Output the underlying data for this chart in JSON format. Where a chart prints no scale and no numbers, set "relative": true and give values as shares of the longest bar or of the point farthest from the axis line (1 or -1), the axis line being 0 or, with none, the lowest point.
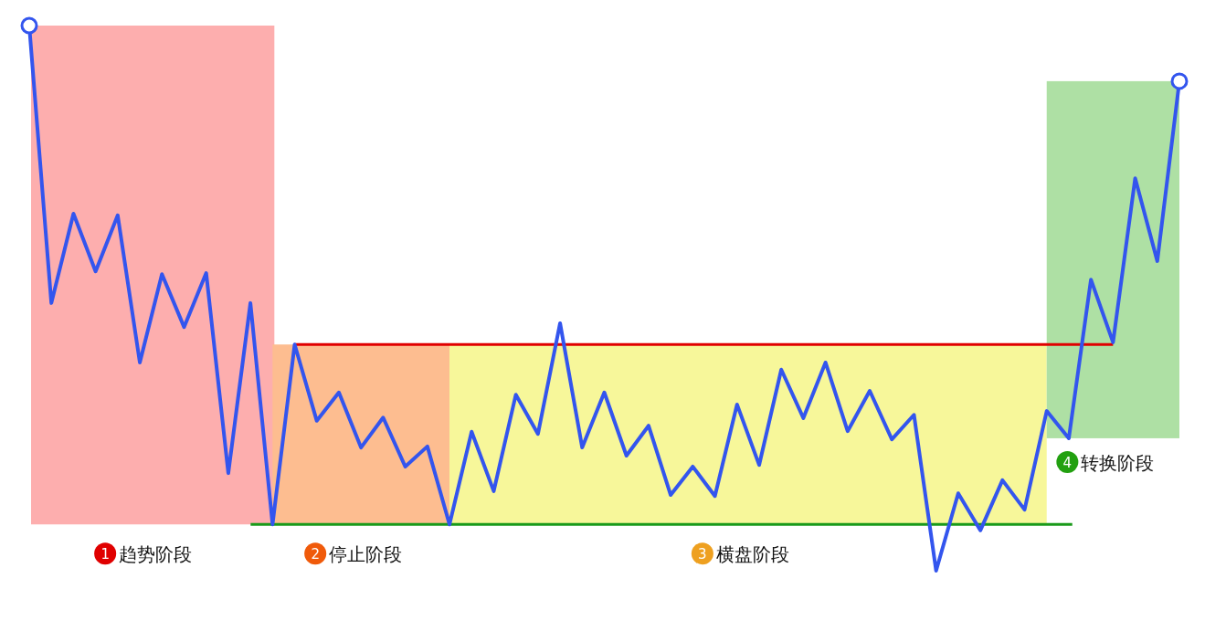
{
  "chart_data": {
    "type": "line",
    "relative": true,
    "categories": [
      null,
      null,
      null,
      null,
      null,
      null,
      null,
      null,
      null,
      null,
      null,
      null,
      null,
      null,
      null,
      null,
      null,
      null,
      null,
      null,
      null,
      null,
      null,
      null,
      null,
      null,
      null,
      null,
      null,
      null,
      null,
      null,
      null,
      null,
      null,
      null,
      null,
      null,
      null,
      null,
      null,
      null,
      null,
      null,
      null,
      null,
      null,
      null,
      null,
      null,
      null,
      null,
      null
    ],
    "series": [
      {
        "color": "#3355ee",
        "values": [
          1.0,
          0.491,
          0.655,
          0.549,
          0.652,
          0.382,
          0.544,
          0.447,
          0.546,
          0.179,
          0.491,
          0.085,
          0.415,
          0.275,
          0.327,
          0.226,
          0.281,
          0.191,
          0.228,
          0.085,
          0.255,
          0.146,
          0.323,
          0.251,
          0.454,
          0.226,
          0.327,
          0.211,
          0.266,
          0.139,
          0.191,
          0.137,
          0.305,
          0.194,
          0.369,
          0.28,
          0.382,
          0.256,
          0.33,
          0.241,
          0.286,
          0.0,
          0.142,
          0.074,
          0.166,
          0.112,
          0.293,
          0.243,
          0.534,
          0.419,
          0.72,
          0.568,
          0.898
        ]
      }
    ],
    "ref_lines": [
      {
        "axis": "y",
        "value": 0.415,
        "color": "#e00000"
      },
      {
        "axis": "y",
        "value": 0.085,
        "color": "#1a9a1a"
      }
    ],
    "annotations": [
      "1 趋势阶段",
      "2 停止阶段",
      "3 横盘阶段",
      "4 转换阶段"
    ]
  }
}
